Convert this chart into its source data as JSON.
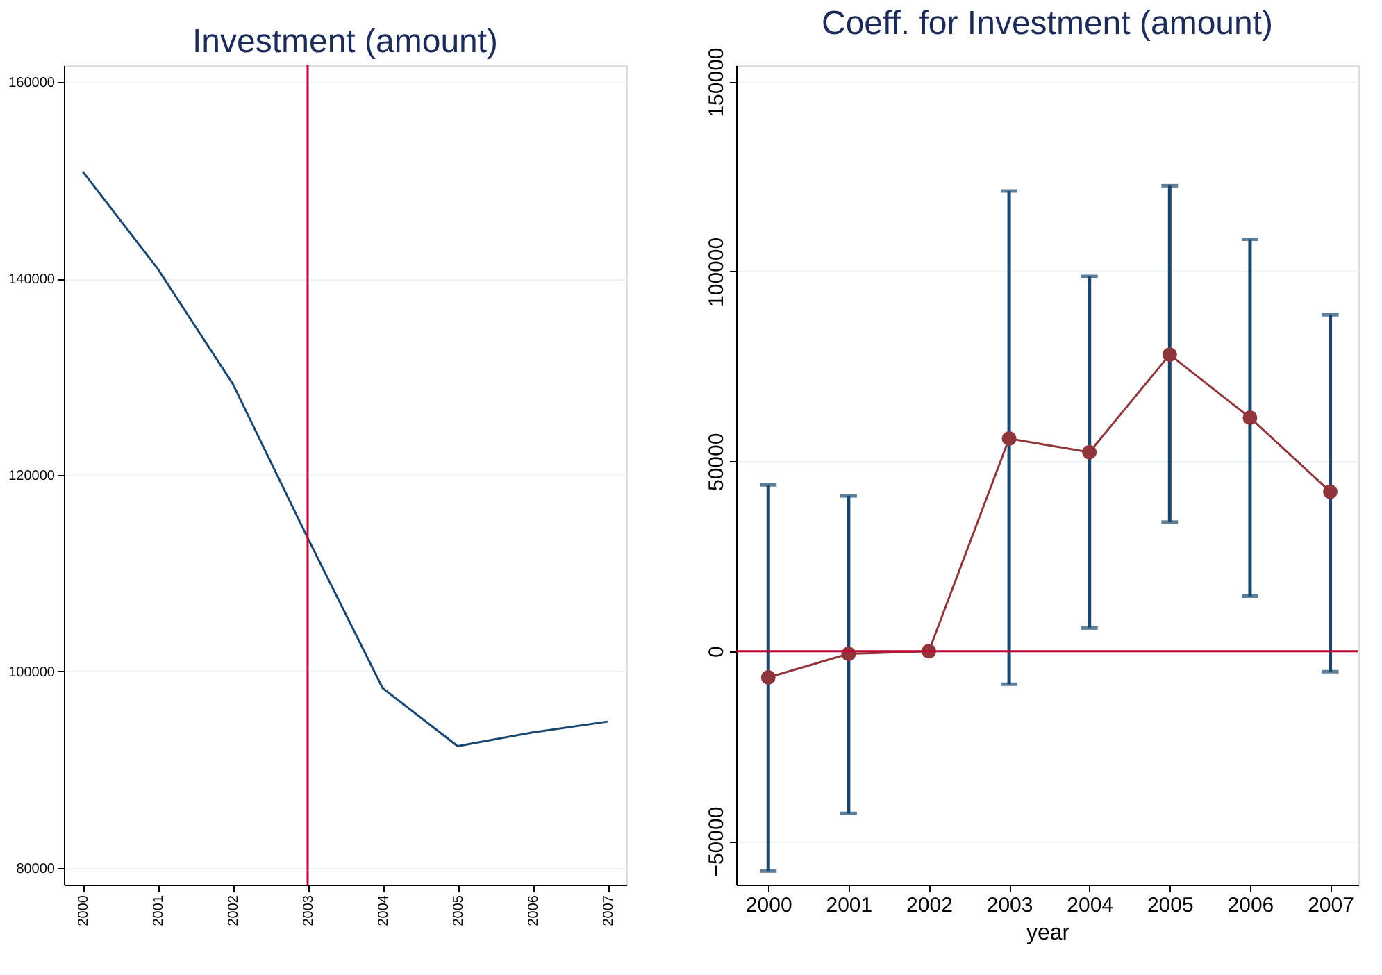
{
  "chart_data": [
    {
      "type": "line",
      "title": "Investment (amount)",
      "x": [
        2000,
        2001,
        2002,
        2003,
        2004,
        2005,
        2006,
        2007
      ],
      "series": [
        {
          "color": "#1a476f",
          "values": [
            150900,
            141000,
            129300,
            113600,
            98300,
            92400,
            93800,
            94900
          ]
        }
      ],
      "xlim": [
        1999.75,
        2007.25
      ],
      "xticks": [
        2000,
        2001,
        2002,
        2003,
        2004,
        2005,
        2006,
        2007
      ],
      "ylim": [
        78300,
        161700
      ],
      "yticks": [
        80000,
        100000,
        120000,
        140000,
        160000
      ],
      "ref_lines": [
        {
          "axis": "x",
          "value": 2003,
          "color": "#c10534"
        }
      ],
      "grid": "y",
      "marker": "none"
    },
    {
      "type": "line",
      "title": "Coeff. for Investment (amount)",
      "xlabel": "year",
      "x": [
        2000,
        2001,
        2002,
        2003,
        2004,
        2005,
        2006,
        2007
      ],
      "series": [
        {
          "color": "#90353b",
          "values": [
            -6900,
            -700,
            0,
            56000,
            52400,
            78100,
            61500,
            42000
          ],
          "errors": [
            [
              -57900,
              43800
            ],
            [
              -42700,
              40900
            ],
            null,
            [
              -8700,
              121200
            ],
            [
              6100,
              98700
            ],
            [
              34000,
              122600
            ],
            [
              14500,
              108500
            ],
            [
              -5400,
              88600
            ]
          ]
        }
      ],
      "xlim": [
        1999.6,
        2007.35
      ],
      "xticks": [
        2000,
        2001,
        2002,
        2003,
        2004,
        2005,
        2006,
        2007
      ],
      "ylim": [
        -61500,
        154300
      ],
      "yticks": [
        -50000,
        0,
        50000,
        100000,
        150000
      ],
      "ref_lines": [
        {
          "axis": "y",
          "value": 0,
          "color": "#c10534"
        }
      ],
      "grid": "y",
      "marker": "circle"
    }
  ]
}
